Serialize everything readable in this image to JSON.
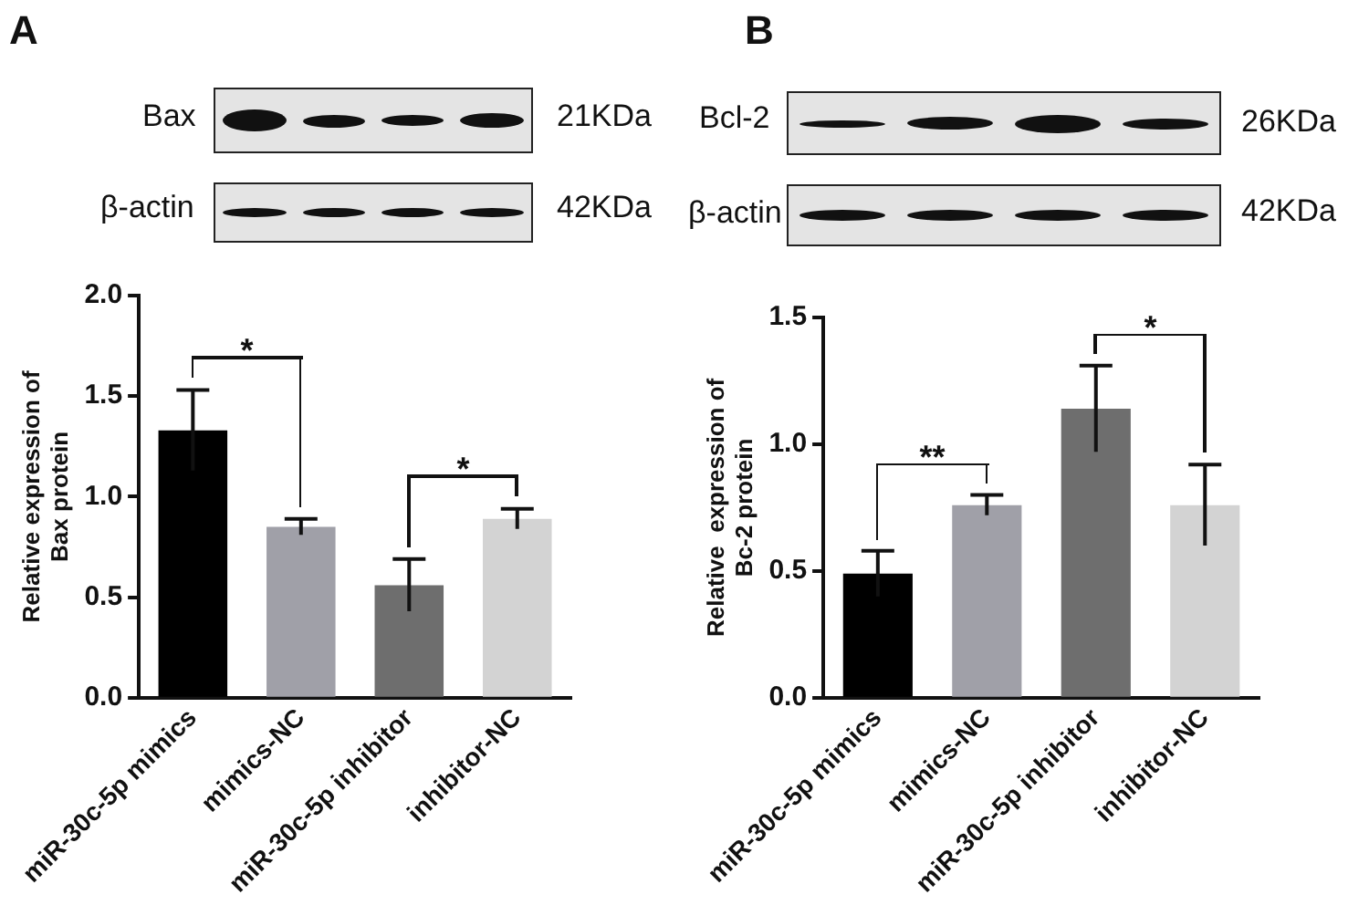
{
  "chart_data": [
    {
      "type": "bar",
      "ylabel": "Relative expression of\nBax protein",
      "categories": [
        "miR-30c-5p mimics",
        "mimics-NC",
        "miR-30c-5p inhibitor",
        "inhibitor-NC"
      ],
      "values": [
        1.33,
        0.85,
        0.56,
        0.89
      ],
      "errors": [
        0.2,
        0.04,
        0.13,
        0.05
      ],
      "colors": [
        "#000000",
        "#a0a0a8",
        "#6e6e6e",
        "#d3d3d3"
      ],
      "ylim": [
        0,
        2.0
      ],
      "yticks": [
        {
          "value": 0,
          "label": "0.0"
        },
        {
          "value": 0.5,
          "label": "0.5"
        },
        {
          "value": 1,
          "label": "1.0"
        },
        {
          "value": 1.5,
          "label": "1.5"
        },
        {
          "value": 2,
          "label": "2.0"
        }
      ],
      "grid": false,
      "legend": false,
      "annotations": [
        "A",
        "Bax",
        "21KDa",
        "β-actin",
        "42KDa",
        "*",
        "*"
      ]
    },
    {
      "type": "bar",
      "ylabel": "Relative  expression of\nBc-2 protein",
      "categories": [
        "miR-30c-5p mimics",
        "mimics-NC",
        "miR-30c-5p inhibitor",
        "inhibitor-NC"
      ],
      "values": [
        0.49,
        0.76,
        1.14,
        0.76
      ],
      "errors": [
        0.09,
        0.04,
        0.17,
        0.16
      ],
      "colors": [
        "#000000",
        "#a0a0a8",
        "#6e6e6e",
        "#d3d3d3"
      ],
      "ylim": [
        0,
        1.5
      ],
      "yticks": [
        {
          "value": 0,
          "label": "0.0"
        },
        {
          "value": 0.5,
          "label": "0.5"
        },
        {
          "value": 1,
          "label": "1.0"
        },
        {
          "value": 1.5,
          "label": "1.5"
        }
      ],
      "grid": false,
      "legend": false,
      "annotations": [
        "B",
        "Bcl-2",
        "26KDa",
        "β-actin",
        "42KDa",
        "**",
        "*"
      ]
    }
  ]
}
